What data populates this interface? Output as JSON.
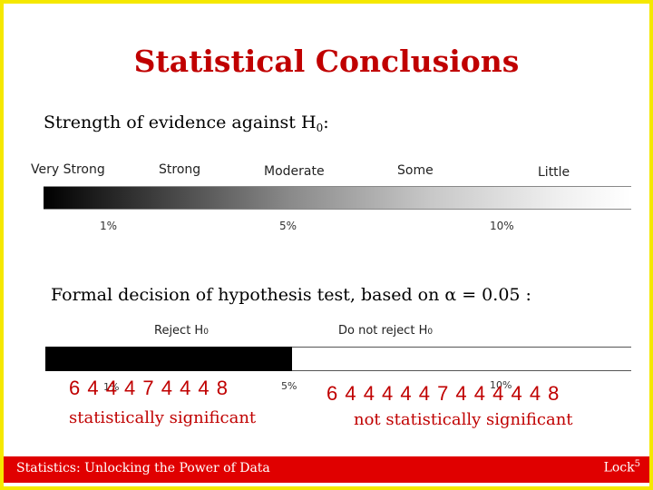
{
  "slide": {
    "title": "Statistical Conclusions",
    "strength_heading": "Strength of evidence against H",
    "strength_heading_sub": "0",
    "strength_heading_end": ":",
    "decision_heading": "Formal decision of hypothesis test, based on α = 0.05 :"
  },
  "evidence_scale": {
    "labels": [
      "Very Strong",
      "Strong",
      "Moderate",
      "Some",
      "Little"
    ],
    "percent_ticks": [
      "1%",
      "5%",
      "10%"
    ]
  },
  "decision_bar": {
    "reject_label": "Reject H",
    "reject_label_sub": "0",
    "not_reject_label": "Do not reject H",
    "not_reject_label_sub": "0",
    "tick_1": "1%",
    "tick_5": "5%",
    "tick_10": "10%",
    "left_brace_text": "6 4 4 4 7 4 4 4 8",
    "right_brace_text": "6 4 4 4 4 4 7 4 4 4 4 4 8",
    "left_verdict": "statistically significant",
    "right_verdict": "not statistically significant"
  },
  "footer": {
    "left": "Statistics: Unlocking the Power of Data",
    "right": "Lock",
    "right_sup": "5"
  },
  "colors": {
    "accent": "#c00000",
    "footer_bg": "#e00000",
    "frame": "#f5e800"
  }
}
